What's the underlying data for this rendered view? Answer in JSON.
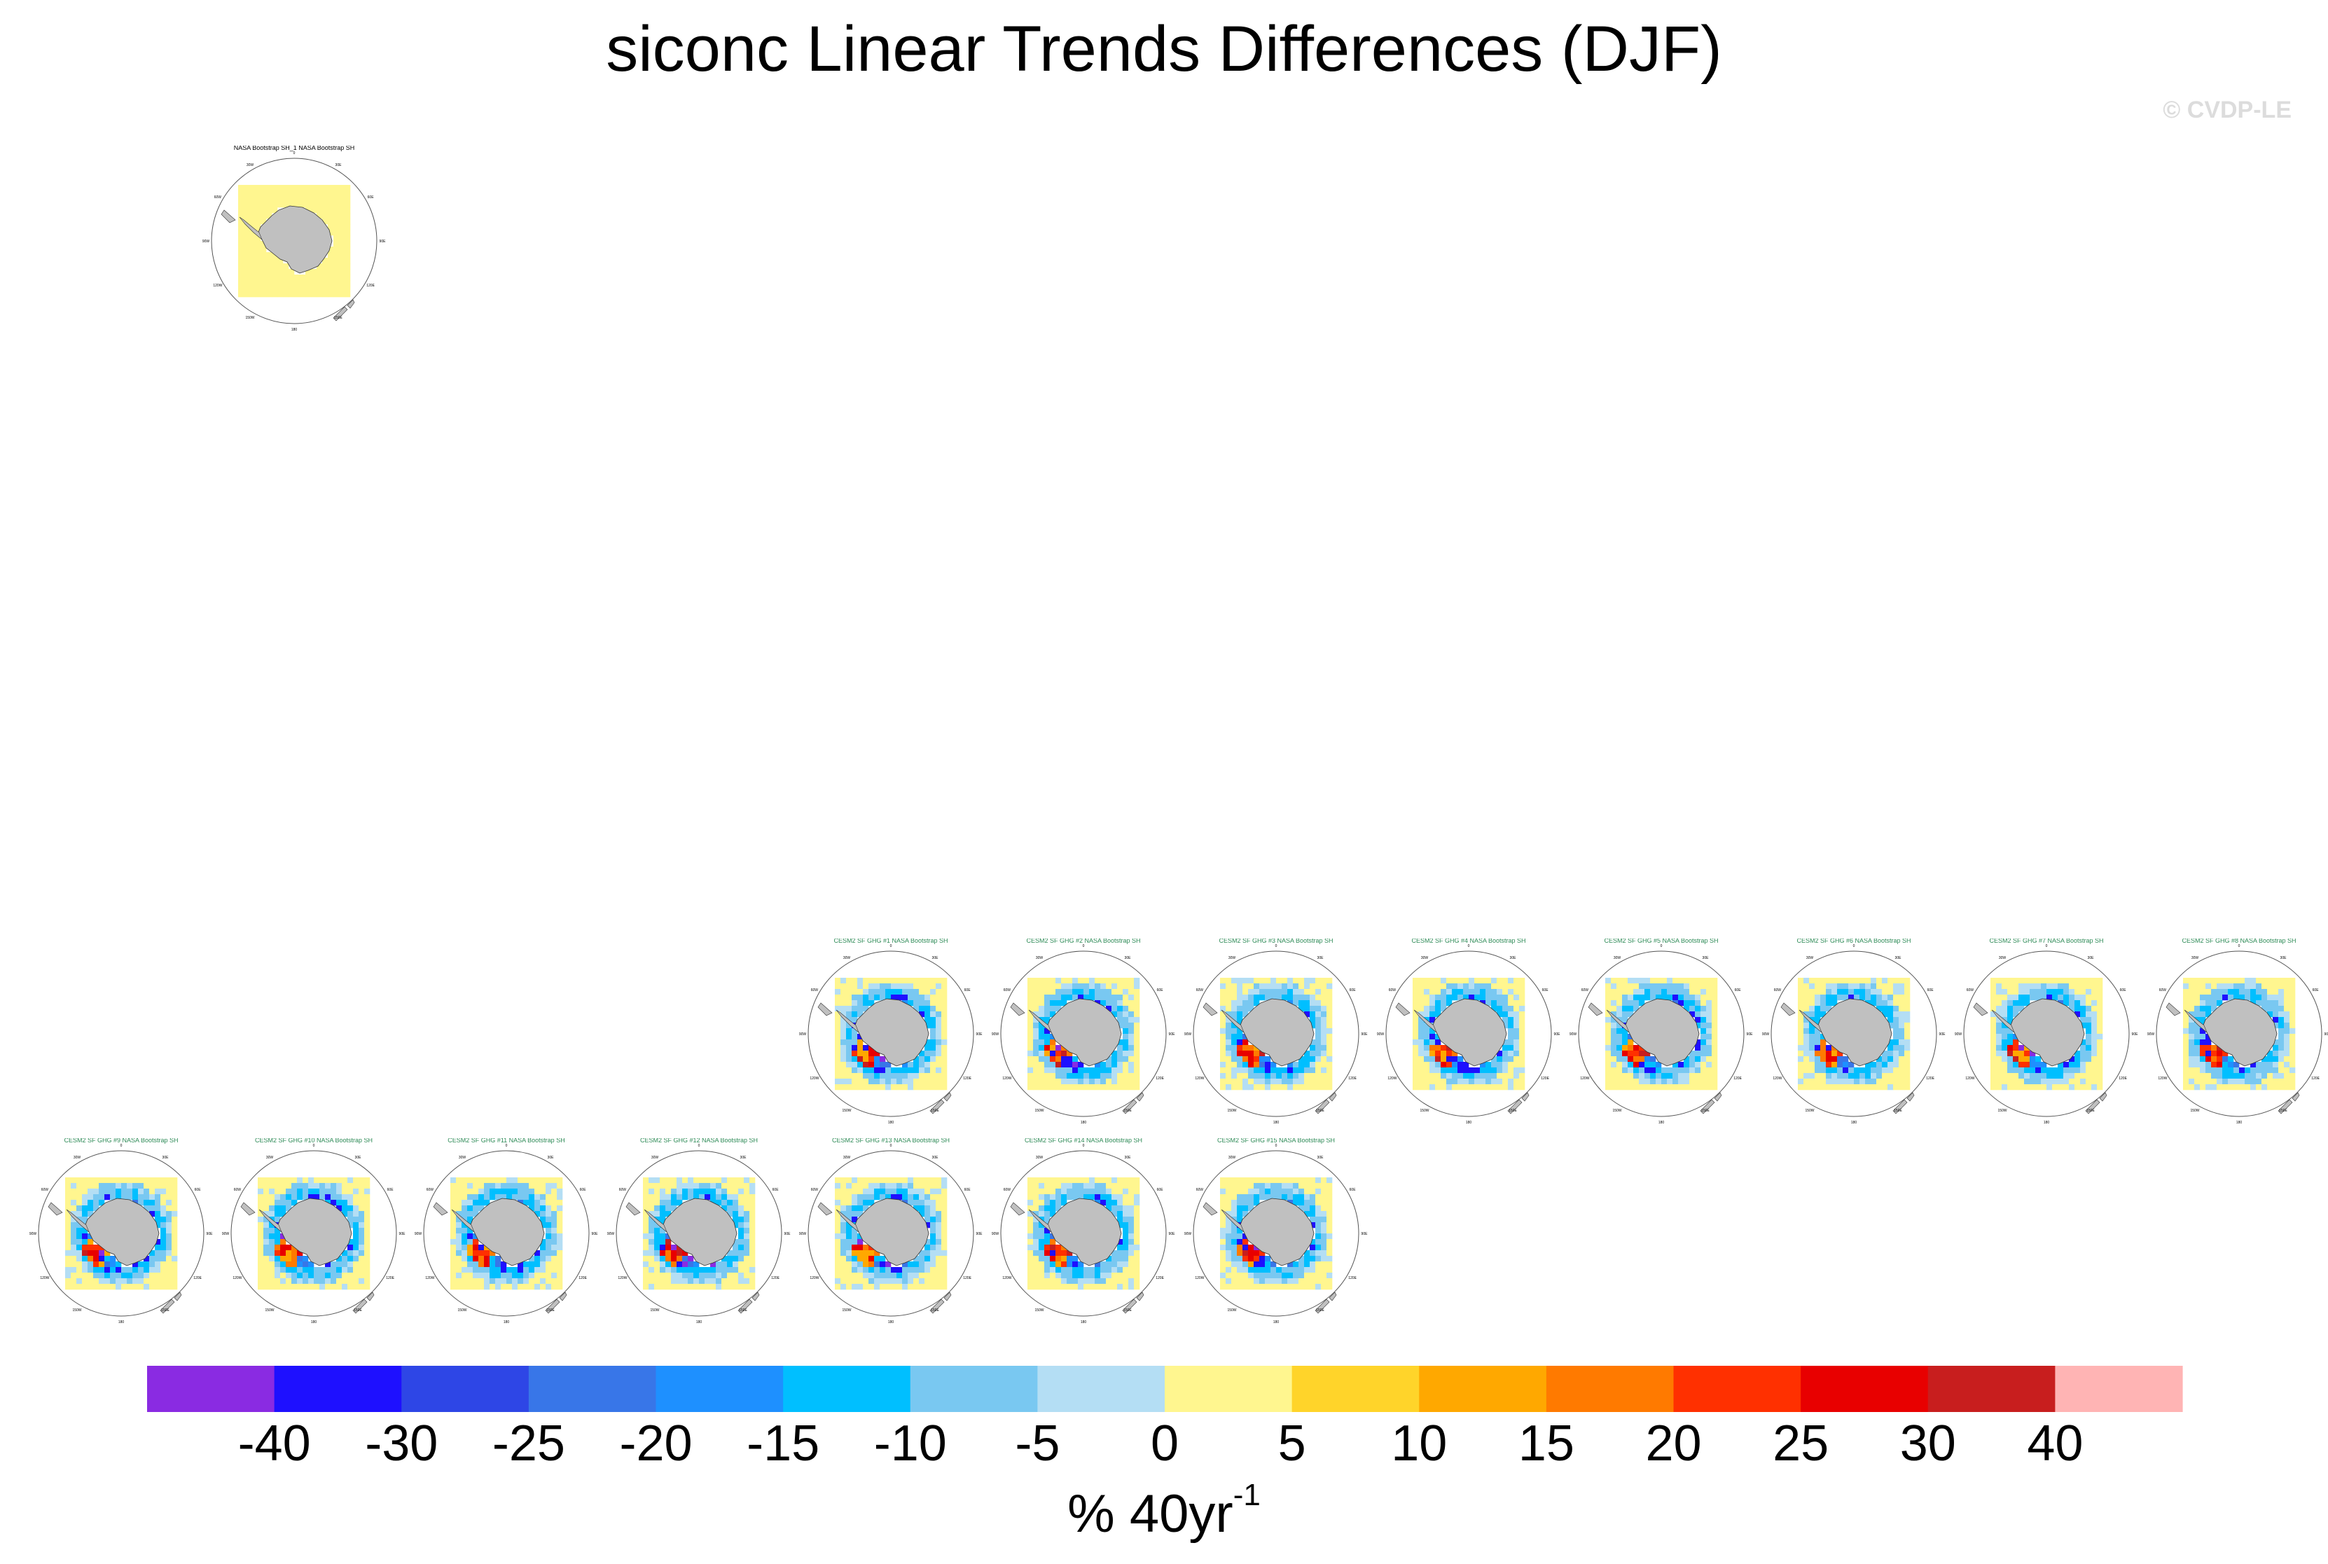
{
  "title": "siconc Linear Trends Differences (DJF)",
  "copyright": "© CVDP-LE",
  "units": {
    "base": "% 40yr",
    "exponent": "-1"
  },
  "colors": {
    "land": "#c0c0c0",
    "background_zero": "#fff68f",
    "panel_title_obs": "#000000",
    "panel_title_model": "#2e8b57"
  },
  "chart_data": {
    "type": "map-panels",
    "panels": [
      {
        "title": "NASA Bootstrap SH_1 NASA Bootstrap SH",
        "kind": "obs"
      },
      {
        "title": "CESM2 SF GHG #1 NASA Bootstrap SH",
        "kind": "model",
        "seed": 1
      },
      {
        "title": "CESM2 SF GHG #2 NASA Bootstrap SH",
        "kind": "model",
        "seed": 2
      },
      {
        "title": "CESM2 SF GHG #3 NASA Bootstrap SH",
        "kind": "model",
        "seed": 3
      },
      {
        "title": "CESM2 SF GHG #4 NASA Bootstrap SH",
        "kind": "model",
        "seed": 4
      },
      {
        "title": "CESM2 SF GHG #5 NASA Bootstrap SH",
        "kind": "model",
        "seed": 5
      },
      {
        "title": "CESM2 SF GHG #6 NASA Bootstrap SH",
        "kind": "model",
        "seed": 6
      },
      {
        "title": "CESM2 SF GHG #7 NASA Bootstrap SH",
        "kind": "model",
        "seed": 7
      },
      {
        "title": "CESM2 SF GHG #8 NASA Bootstrap SH",
        "kind": "model",
        "seed": 8
      },
      {
        "title": "CESM2 SF GHG #9 NASA Bootstrap SH",
        "kind": "model",
        "seed": 9
      },
      {
        "title": "CESM2 SF GHG #10 NASA Bootstrap SH",
        "kind": "model",
        "seed": 10
      },
      {
        "title": "CESM2 SF GHG #11 NASA Bootstrap SH",
        "kind": "model",
        "seed": 11
      },
      {
        "title": "CESM2 SF GHG #12 NASA Bootstrap SH",
        "kind": "model",
        "seed": 12
      },
      {
        "title": "CESM2 SF GHG #13 NASA Bootstrap SH",
        "kind": "model",
        "seed": 13
      },
      {
        "title": "CESM2 SF GHG #14 NASA Bootstrap SH",
        "kind": "model",
        "seed": 14
      },
      {
        "title": "CESM2 SF GHG #15 NASA Bootstrap SH",
        "kind": "model",
        "seed": 15
      }
    ],
    "lon_labels": [
      "0",
      "30E",
      "60E",
      "90E",
      "120E",
      "150E",
      "180",
      "150W",
      "120W",
      "90W",
      "60W",
      "30W"
    ],
    "colorbar": {
      "tick_labels": [
        "-40",
        "-30",
        "-25",
        "-20",
        "-15",
        "-10",
        "-5",
        "0",
        "5",
        "10",
        "15",
        "20",
        "25",
        "30",
        "40"
      ],
      "colors": [
        "#8a2be2",
        "#1e10ff",
        "#2e46e6",
        "#3876e8",
        "#1e90ff",
        "#00bfff",
        "#79c8f1",
        "#b4def4",
        "#fff68f",
        "#ffd42a",
        "#ffa800",
        "#ff7a00",
        "#ff3000",
        "#e80000",
        "#c81e1e",
        "#ffb4b4"
      ]
    }
  }
}
